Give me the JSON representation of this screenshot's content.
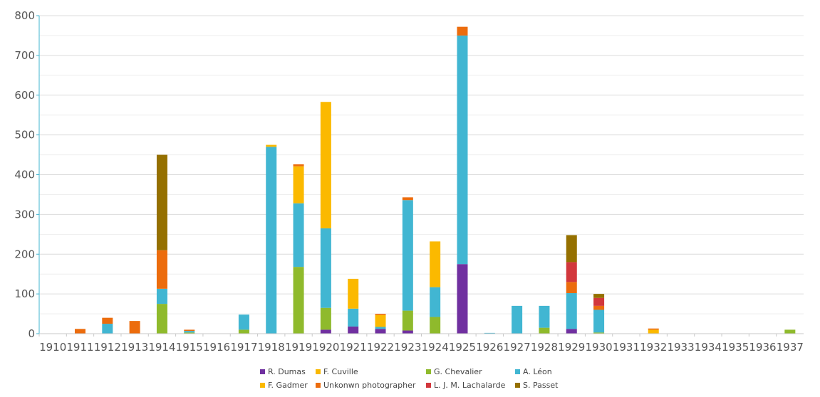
{
  "chart_data": {
    "type": "bar",
    "stacked": true,
    "categories": [
      "1910",
      "1911",
      "1912",
      "1913",
      "1914",
      "1915",
      "1916",
      "1917",
      "1918",
      "1919",
      "1920",
      "1921",
      "1922",
      "1923",
      "1924",
      "1925",
      "1926",
      "1927",
      "1928",
      "1929",
      "1930",
      "1931",
      "1932",
      "1933",
      "1934",
      "1935",
      "1936",
      "1937"
    ],
    "ylim": [
      0,
      800
    ],
    "yticks": [
      0,
      100,
      200,
      300,
      400,
      500,
      600,
      700,
      800
    ],
    "grid": true,
    "legend": "bottom",
    "series": [
      {
        "name": "R. Dumas",
        "color": "#7030a0",
        "values": [
          0,
          0,
          0,
          0,
          0,
          0,
          0,
          0,
          0,
          0,
          10,
          18,
          12,
          8,
          0,
          175,
          0,
          0,
          0,
          12,
          0,
          0,
          0,
          0,
          0,
          0,
          0,
          0
        ]
      },
      {
        "name": "F. Cuville",
        "color": "#f9b800",
        "values": [
          0,
          0,
          0,
          0,
          0,
          0,
          0,
          0,
          0,
          0,
          0,
          0,
          0,
          0,
          0,
          0,
          0,
          0,
          0,
          0,
          0,
          0,
          0,
          0,
          0,
          0,
          0,
          0
        ]
      },
      {
        "name": "G. Chevalier",
        "color": "#8fba2c",
        "values": [
          0,
          0,
          0,
          0,
          75,
          3,
          0,
          10,
          0,
          0,
          55,
          0,
          0,
          50,
          42,
          0,
          0,
          0,
          15,
          0,
          3,
          0,
          0,
          0,
          0,
          0,
          0,
          10
        ]
      },
      {
        "name": "A. Léon",
        "color": "#41b6d2",
        "values": [
          0,
          0,
          25,
          0,
          38,
          4,
          0,
          38,
          470,
          0,
          200,
          45,
          5,
          278,
          75,
          575,
          2,
          70,
          55,
          90,
          57,
          0,
          0,
          0,
          0,
          0,
          0,
          0
        ]
      },
      {
        "name": "F. Gadmer",
        "color": "#fbb900",
        "values": [
          0,
          0,
          0,
          0,
          0,
          0,
          0,
          0,
          5,
          93,
          0,
          75,
          30,
          0,
          115,
          0,
          0,
          0,
          0,
          0,
          0,
          0,
          10,
          0,
          0,
          0,
          0,
          0
        ]
      },
      {
        "name": "Unkonwn photographer",
        "color": "#ec6c0d",
        "values": [
          0,
          12,
          15,
          32,
          97,
          3,
          0,
          0,
          0,
          0,
          0,
          0,
          3,
          7,
          0,
          22,
          0,
          0,
          0,
          28,
          10,
          0,
          3,
          0,
          0,
          0,
          0,
          0
        ]
      },
      {
        "name": "L. J. M. Lachalarde",
        "color": "#d2373c",
        "values": [
          0,
          0,
          0,
          0,
          0,
          0,
          0,
          0,
          0,
          0,
          0,
          0,
          0,
          0,
          0,
          0,
          0,
          0,
          0,
          50,
          20,
          0,
          0,
          0,
          0,
          0,
          0,
          0
        ]
      },
      {
        "name": "S. Passet",
        "color": "#957000",
        "values": [
          0,
          0,
          0,
          0,
          240,
          0,
          0,
          0,
          0,
          0,
          0,
          0,
          0,
          0,
          0,
          0,
          0,
          0,
          0,
          68,
          10,
          0,
          0,
          0,
          0,
          0,
          0,
          0
        ]
      }
    ],
    "extra_segments": [
      {
        "category": "1919",
        "series": "G. Chevalier",
        "value": 168
      },
      {
        "category": "1919",
        "series": "A. Léon",
        "value": 160
      },
      {
        "category": "1919",
        "series": "Unkonwn photographer",
        "value": 5
      },
      {
        "category": "1920",
        "series": "F. Gadmer",
        "value": 318
      }
    ]
  }
}
